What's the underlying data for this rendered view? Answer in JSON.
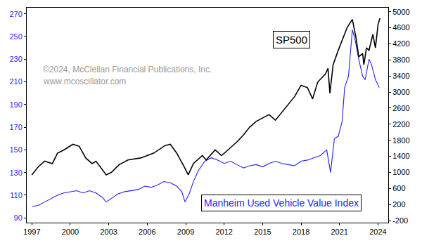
{
  "chart_data": {
    "type": "line",
    "annotations": [
      "©2024, McClellan Financial Publications, Inc.",
      "www.mcoscillator.com"
    ],
    "xlim": [
      1996.6,
      2024.8
    ],
    "xticks": [
      1997,
      2000,
      2003,
      2006,
      2009,
      2012,
      2015,
      2018,
      2021,
      2024
    ],
    "ylim": [
      85.8,
      275.4
    ],
    "yticks": [
      90,
      110,
      130,
      150,
      170,
      190,
      210,
      230,
      250,
      270
    ],
    "y2lim": [
      -250,
      5100
    ],
    "y2ticks": [
      -200,
      200,
      600,
      1000,
      1400,
      1800,
      2200,
      2600,
      3000,
      3400,
      3800,
      4200,
      4600,
      5000
    ],
    "grid": false,
    "series": [
      {
        "name": "SP500",
        "color": "#000000",
        "axis": "y2",
        "x": [
          1997.0,
          1997.5,
          1998.0,
          1998.6,
          1999.0,
          1999.5,
          2000.2,
          2000.7,
          2001.2,
          2001.7,
          2002.0,
          2002.5,
          2002.8,
          2003.2,
          2003.8,
          2004.5,
          2005.5,
          2006.5,
          2007.4,
          2007.8,
          2008.3,
          2008.8,
          2009.2,
          2009.6,
          2010.3,
          2010.6,
          2011.3,
          2011.8,
          2012.5,
          2013.0,
          2013.5,
          2014.0,
          2014.5,
          2015.0,
          2015.5,
          2016.0,
          2016.5,
          2017.0,
          2017.5,
          2018.0,
          2018.5,
          2018.9,
          2019.3,
          2019.9,
          2020.1,
          2020.25,
          2020.5,
          2020.9,
          2021.3,
          2021.6,
          2022.0,
          2022.3,
          2022.5,
          2022.8,
          2022.9,
          2023.1,
          2023.3,
          2023.6,
          2023.8,
          2024.0,
          2024.15
        ],
        "values": [
          940,
          1140,
          1280,
          1220,
          1480,
          1560,
          1700,
          1650,
          1360,
          1220,
          1280,
          1080,
          940,
          1000,
          1190,
          1310,
          1360,
          1480,
          1670,
          1700,
          1480,
          1190,
          940,
          1220,
          1420,
          1310,
          1560,
          1420,
          1620,
          1760,
          1930,
          2130,
          2270,
          2350,
          2440,
          2300,
          2490,
          2690,
          2890,
          3170,
          3110,
          2830,
          3250,
          3450,
          3590,
          2970,
          3680,
          4040,
          4380,
          4610,
          4810,
          4330,
          3880,
          3960,
          3680,
          4100,
          4040,
          4440,
          4100,
          4670,
          4840
        ]
      },
      {
        "name": "Manheim Used Vehicle Value Index",
        "color": "#1f1fff",
        "axis": "y",
        "x": [
          1997.0,
          1997.5,
          1998.0,
          1998.5,
          1999.0,
          1999.5,
          2000.0,
          2000.5,
          2001.0,
          2001.5,
          2002.0,
          2002.5,
          2002.8,
          2003.2,
          2003.7,
          2004.2,
          2004.8,
          2005.3,
          2005.8,
          2006.3,
          2006.8,
          2007.3,
          2007.8,
          2008.3,
          2008.7,
          2008.95,
          2009.3,
          2009.6,
          2010.0,
          2010.5,
          2011.0,
          2011.5,
          2012.0,
          2012.5,
          2013.0,
          2013.5,
          2014.0,
          2014.5,
          2015.0,
          2015.5,
          2016.0,
          2016.5,
          2017.0,
          2017.5,
          2018.0,
          2018.5,
          2019.0,
          2019.5,
          2020.0,
          2020.3,
          2020.6,
          2020.9,
          2021.2,
          2021.4,
          2021.7,
          2022.0,
          2022.2,
          2022.5,
          2022.8,
          2023.0,
          2023.3,
          2023.5,
          2023.8,
          2024.0,
          2024.1
        ],
        "values": [
          100,
          101,
          104,
          107,
          110,
          112,
          113,
          114,
          112,
          114,
          112,
          108,
          104,
          107,
          111,
          113,
          114,
          115,
          118,
          117,
          119,
          122,
          121,
          118,
          113,
          104,
          112,
          122,
          132,
          140,
          143,
          141,
          138,
          140,
          137,
          134,
          136,
          137,
          135,
          138,
          140,
          138,
          137,
          136,
          140,
          141,
          143,
          145,
          150,
          130,
          160,
          162,
          175,
          205,
          215,
          256,
          248,
          230,
          215,
          212,
          230,
          225,
          212,
          207,
          205
        ]
      }
    ]
  }
}
